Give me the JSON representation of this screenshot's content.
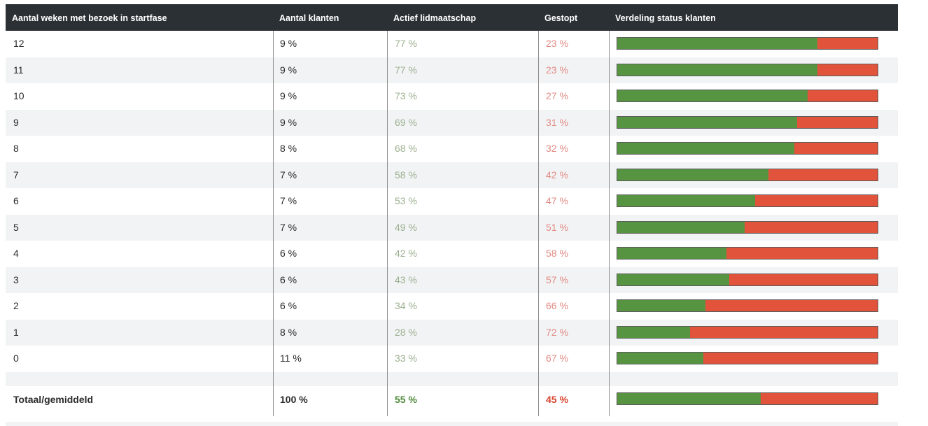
{
  "header": {
    "col_weeks": "Aantal weken met bezoek in startfase",
    "col_clients": "Aantal klanten",
    "col_active": "Actief lidmaatschap",
    "col_stopped": "Gestopt",
    "col_distribution": "Verdeling status klanten"
  },
  "rows": [
    {
      "weeks": "12",
      "clients": "9 %",
      "active": "77 %",
      "stopped": "23 %"
    },
    {
      "weeks": "11",
      "clients": "9 %",
      "active": "77 %",
      "stopped": "23 %"
    },
    {
      "weeks": "10",
      "clients": "9 %",
      "active": "73 %",
      "stopped": "27 %"
    },
    {
      "weeks": "9",
      "clients": "9 %",
      "active": "69 %",
      "stopped": "31 %"
    },
    {
      "weeks": "8",
      "clients": "8 %",
      "active": "68 %",
      "stopped": "32 %"
    },
    {
      "weeks": "7",
      "clients": "7 %",
      "active": "58 %",
      "stopped": "42 %"
    },
    {
      "weeks": "6",
      "clients": "7 %",
      "active": "53 %",
      "stopped": "47 %"
    },
    {
      "weeks": "5",
      "clients": "7 %",
      "active": "49 %",
      "stopped": "51 %"
    },
    {
      "weeks": "4",
      "clients": "6 %",
      "active": "42 %",
      "stopped": "58 %"
    },
    {
      "weeks": "3",
      "clients": "6 %",
      "active": "43 %",
      "stopped": "57 %"
    },
    {
      "weeks": "2",
      "clients": "6 %",
      "active": "34 %",
      "stopped": "66 %"
    },
    {
      "weeks": "1",
      "clients": "8 %",
      "active": "28 %",
      "stopped": "72 %"
    },
    {
      "weeks": "0",
      "clients": "11 %",
      "active": "33 %",
      "stopped": "67 %"
    }
  ],
  "total": {
    "weeks": "Totaal/gemiddeld",
    "clients": "100 %",
    "active": "55 %",
    "stopped": "45 %"
  },
  "colors": {
    "active": "#569442",
    "stopped": "#e2533c",
    "header_bg": "#2b3035"
  },
  "chart_data": {
    "type": "table",
    "columns": [
      "Aantal weken met bezoek in startfase",
      "Aantal klanten",
      "Actief lidmaatschap",
      "Gestopt",
      "Verdeling status klanten"
    ],
    "categories": [
      "12",
      "11",
      "10",
      "9",
      "8",
      "7",
      "6",
      "5",
      "4",
      "3",
      "2",
      "1",
      "0",
      "Totaal/gemiddeld"
    ],
    "series": [
      {
        "name": "Aantal klanten",
        "values": [
          9,
          9,
          9,
          9,
          8,
          7,
          7,
          7,
          6,
          6,
          6,
          8,
          11,
          100
        ]
      },
      {
        "name": "Actief lidmaatschap",
        "values": [
          77,
          77,
          73,
          69,
          68,
          58,
          53,
          49,
          42,
          43,
          34,
          28,
          33,
          55
        ]
      },
      {
        "name": "Gestopt",
        "values": [
          23,
          23,
          27,
          31,
          32,
          42,
          47,
          51,
          58,
          57,
          66,
          72,
          67,
          45
        ]
      }
    ]
  }
}
